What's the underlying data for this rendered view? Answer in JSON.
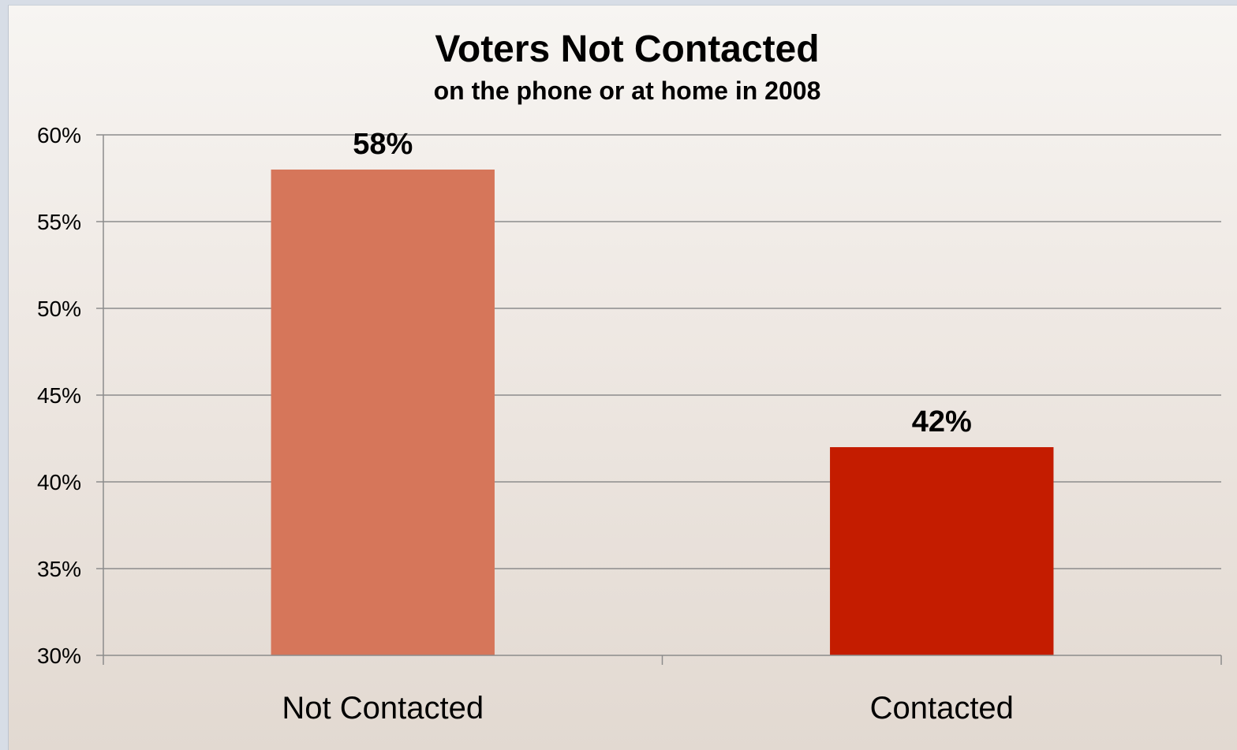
{
  "chart_data": {
    "type": "bar",
    "title": "Voters Not Contacted",
    "subtitle": "on the phone or at home in 2008",
    "categories": [
      "Not Contacted",
      "Contacted"
    ],
    "values": [
      58,
      42
    ],
    "data_labels": [
      "58%",
      "42%"
    ],
    "colors": [
      "#d6765a",
      "#c41c00"
    ],
    "ylim": [
      30,
      60
    ],
    "yticks": [
      30,
      35,
      40,
      45,
      50,
      55,
      60
    ],
    "ytick_labels": [
      "30%",
      "35%",
      "40%",
      "45%",
      "50%",
      "55%",
      "60%"
    ],
    "grid": true,
    "legend": "none",
    "xlabel": "",
    "ylabel": ""
  }
}
